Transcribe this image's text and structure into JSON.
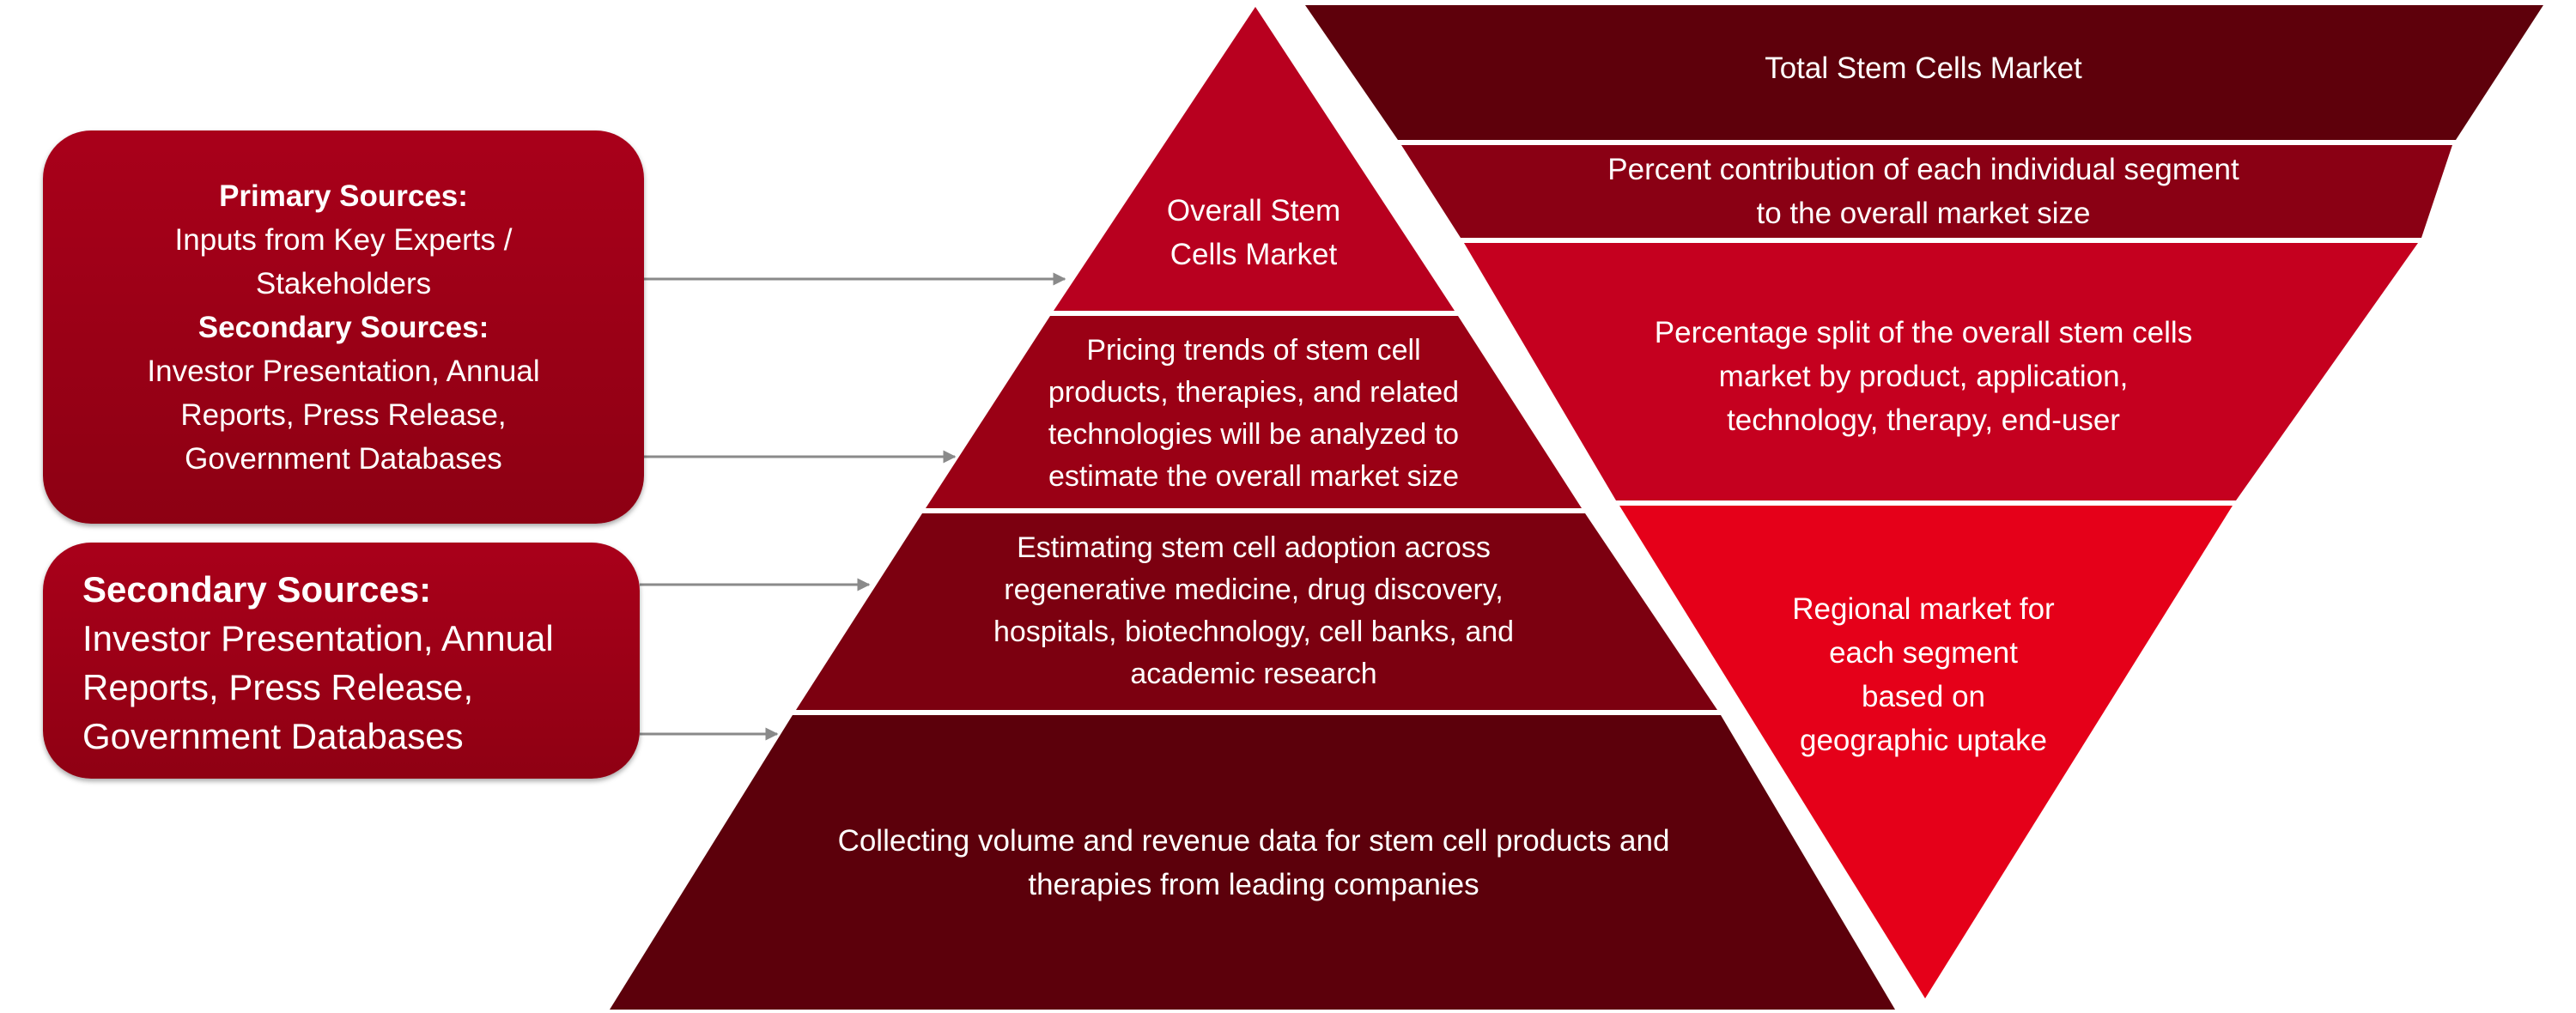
{
  "colors": {
    "pyramid_top": "#b8001f",
    "pyramid_2": "#9a0015",
    "pyramid_3": "#7c0010",
    "pyramid_base": "#5c000b",
    "funnel_1": "#5e000b",
    "funnel_2": "#8a0014",
    "funnel_3": "#c5001f",
    "funnel_4": "#e50019",
    "box_fill": "#a6001a",
    "arrow": "#8a8a8a"
  },
  "sources": {
    "primary_box": {
      "primary_heading": "Primary Sources:",
      "primary_lines": [
        "Inputs from Key Experts /",
        "Stakeholders"
      ],
      "secondary_heading": "Secondary Sources:",
      "secondary_lines": [
        "Investor Presentation, Annual",
        "Reports, Press Release,",
        "Government Databases"
      ]
    },
    "secondary_box": {
      "heading": "Secondary Sources:",
      "lines": [
        "Investor Presentation, Annual",
        "Reports, Press Release,",
        "Government Databases"
      ]
    }
  },
  "pyramid": {
    "levels": [
      {
        "lines": [
          "Overall Stem",
          "Cells Market"
        ]
      },
      {
        "lines": [
          "Pricing trends of stem cell",
          "products, therapies, and related",
          "technologies will be analyzed to",
          "estimate the overall market size"
        ]
      },
      {
        "lines": [
          "Estimating stem cell adoption across",
          "regenerative medicine, drug discovery,",
          "hospitals, biotechnology, cell banks, and",
          "academic research"
        ]
      },
      {
        "lines": [
          "Collecting volume and revenue data for stem cell products and",
          "therapies from leading companies"
        ]
      }
    ]
  },
  "funnel": {
    "levels": [
      {
        "lines": [
          "Total Stem Cells Market"
        ]
      },
      {
        "lines": [
          "Percent contribution of each individual segment",
          "to the overall market size"
        ]
      },
      {
        "lines": [
          "Percentage split of the overall stem cells",
          "market by product, application,",
          "technology, therapy, end-user"
        ]
      },
      {
        "lines": [
          "Regional market for",
          "each segment",
          "based on",
          "geographic uptake"
        ]
      }
    ]
  }
}
